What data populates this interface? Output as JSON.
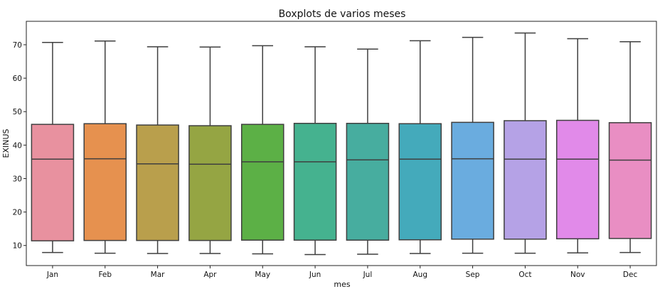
{
  "chart_data": {
    "type": "box",
    "title": "Boxplots de varios meses",
    "xlabel": "mes",
    "ylabel": "EXINUS",
    "ylim": [
      4,
      77
    ],
    "yticks": [
      10,
      20,
      30,
      40,
      50,
      60,
      70
    ],
    "grid": false,
    "categories": [
      "Jan",
      "Feb",
      "Mar",
      "Apr",
      "May",
      "Jun",
      "Jul",
      "Aug",
      "Sep",
      "Oct",
      "Nov",
      "Dec"
    ],
    "colors": [
      "#e8919f",
      "#e6914f",
      "#b99f4c",
      "#95a543",
      "#5cb046",
      "#45b28f",
      "#47ad9f",
      "#44aabb",
      "#6aacdf",
      "#b5a2e6",
      "#e18ae9",
      "#e98ec3"
    ],
    "series": [
      {
        "min": 7.9,
        "q1": 11.4,
        "median": 35.8,
        "q3": 46.2,
        "max": 70.7
      },
      {
        "min": 7.7,
        "q1": 11.5,
        "median": 35.9,
        "q3": 46.4,
        "max": 71.1
      },
      {
        "min": 7.6,
        "q1": 11.5,
        "median": 34.4,
        "q3": 46.0,
        "max": 69.4
      },
      {
        "min": 7.6,
        "q1": 11.5,
        "median": 34.3,
        "q3": 45.8,
        "max": 69.3
      },
      {
        "min": 7.5,
        "q1": 11.6,
        "median": 35.0,
        "q3": 46.2,
        "max": 69.7
      },
      {
        "min": 7.3,
        "q1": 11.6,
        "median": 35.0,
        "q3": 46.5,
        "max": 69.4
      },
      {
        "min": 7.4,
        "q1": 11.6,
        "median": 35.6,
        "q3": 46.5,
        "max": 68.7
      },
      {
        "min": 7.6,
        "q1": 11.7,
        "median": 35.8,
        "q3": 46.4,
        "max": 71.2
      },
      {
        "min": 7.7,
        "q1": 11.9,
        "median": 35.9,
        "q3": 46.8,
        "max": 72.2
      },
      {
        "min": 7.7,
        "q1": 11.9,
        "median": 35.8,
        "q3": 47.3,
        "max": 73.5
      },
      {
        "min": 7.8,
        "q1": 12.0,
        "median": 35.8,
        "q3": 47.4,
        "max": 71.8
      },
      {
        "min": 7.9,
        "q1": 12.1,
        "median": 35.5,
        "q3": 46.7,
        "max": 70.9
      }
    ]
  }
}
